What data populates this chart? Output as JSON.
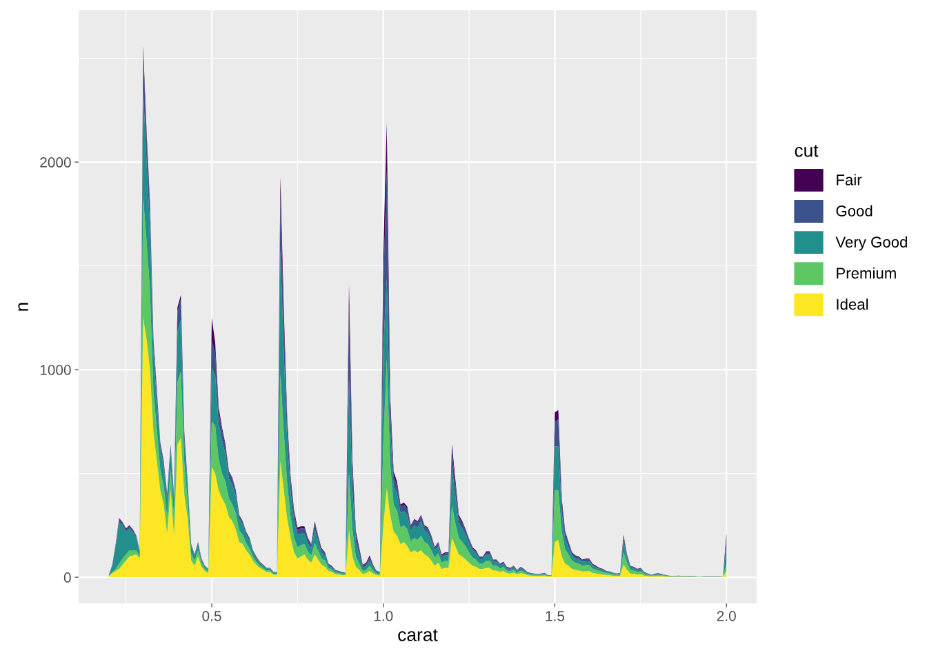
{
  "chart_data": {
    "type": "area",
    "stacked": true,
    "xlabel": "carat",
    "ylabel": "n",
    "legend_title": "cut",
    "legend": "right",
    "grid": true,
    "xlim": [
      0.112,
      2.088
    ],
    "ylim": [
      -126,
      2731
    ],
    "xticks": [
      {
        "value": 0.25,
        "label": null
      },
      {
        "value": 0.5,
        "label": "0.5"
      },
      {
        "value": 0.75,
        "label": null
      },
      {
        "value": 1.0,
        "label": "1.0"
      },
      {
        "value": 1.25,
        "label": null
      },
      {
        "value": 1.5,
        "label": "1.5"
      },
      {
        "value": 1.75,
        "label": null
      },
      {
        "value": 2.0,
        "label": "2.0"
      }
    ],
    "yticks": [
      0,
      {
        "value": 500,
        "label": null
      },
      1000,
      {
        "value": 1500,
        "label": null
      },
      2000,
      {
        "value": 2500,
        "label": null
      }
    ],
    "x": [
      0.2,
      0.21,
      0.22,
      0.23,
      0.24,
      0.25,
      0.26,
      0.27,
      0.28,
      0.29,
      0.3,
      0.31,
      0.32,
      0.33,
      0.34,
      0.35,
      0.36,
      0.37,
      0.38,
      0.39,
      0.4,
      0.41,
      0.42,
      0.43,
      0.44,
      0.45,
      0.46,
      0.47,
      0.48,
      0.49,
      0.5,
      0.51,
      0.52,
      0.53,
      0.54,
      0.55,
      0.56,
      0.57,
      0.58,
      0.59,
      0.6,
      0.61,
      0.62,
      0.63,
      0.64,
      0.65,
      0.66,
      0.67,
      0.68,
      0.69,
      0.7,
      0.71,
      0.72,
      0.73,
      0.74,
      0.75,
      0.76,
      0.77,
      0.78,
      0.79,
      0.8,
      0.81,
      0.82,
      0.83,
      0.84,
      0.85,
      0.86,
      0.87,
      0.88,
      0.89,
      0.9,
      0.91,
      0.92,
      0.93,
      0.94,
      0.95,
      0.96,
      0.97,
      0.98,
      0.99,
      1.0,
      1.01,
      1.02,
      1.03,
      1.04,
      1.05,
      1.06,
      1.07,
      1.08,
      1.09,
      1.1,
      1.11,
      1.12,
      1.13,
      1.14,
      1.15,
      1.16,
      1.17,
      1.18,
      1.19,
      1.2,
      1.21,
      1.22,
      1.23,
      1.24,
      1.25,
      1.26,
      1.27,
      1.28,
      1.29,
      1.3,
      1.31,
      1.32,
      1.33,
      1.34,
      1.35,
      1.36,
      1.37,
      1.38,
      1.39,
      1.4,
      1.41,
      1.42,
      1.43,
      1.44,
      1.45,
      1.46,
      1.47,
      1.48,
      1.49,
      1.5,
      1.51,
      1.52,
      1.53,
      1.54,
      1.55,
      1.56,
      1.57,
      1.58,
      1.59,
      1.6,
      1.61,
      1.62,
      1.63,
      1.64,
      1.65,
      1.66,
      1.67,
      1.68,
      1.69,
      1.7,
      1.71,
      1.72,
      1.73,
      1.74,
      1.75,
      1.76,
      1.78,
      1.8,
      1.82,
      1.84,
      1.86,
      1.88,
      1.9,
      1.92,
      1.94,
      1.96,
      1.98,
      1.99,
      2.0
    ],
    "series": [
      {
        "name": "Ideal",
        "color": "#fde725",
        "values": [
          5,
          20,
          30,
          40,
          60,
          80,
          100,
          105,
          110,
          90,
          1250,
          1150,
          1000,
          700,
          560,
          420,
          350,
          210,
          420,
          200,
          640,
          670,
          400,
          280,
          80,
          55,
          100,
          50,
          30,
          20,
          530,
          500,
          420,
          380,
          350,
          290,
          270,
          230,
          170,
          160,
          130,
          110,
          80,
          60,
          45,
          35,
          25,
          25,
          12,
          12,
          560,
          420,
          280,
          190,
          120,
          90,
          100,
          110,
          85,
          70,
          110,
          85,
          60,
          50,
          30,
          25,
          15,
          13,
          10,
          9,
          225,
          100,
          50,
          35,
          15,
          20,
          30,
          18,
          10,
          8,
          250,
          430,
          300,
          220,
          200,
          160,
          170,
          150,
          120,
          130,
          120,
          130,
          110,
          100,
          80,
          55,
          70,
          40,
          45,
          45,
          190,
          150,
          110,
          100,
          85,
          70,
          55,
          50,
          40,
          40,
          45,
          45,
          33,
          33,
          26,
          30,
          20,
          18,
          22,
          14,
          20,
          16,
          10,
          8,
          7,
          6,
          7,
          8,
          4,
          4,
          170,
          180,
          100,
          65,
          55,
          40,
          35,
          33,
          28,
          29,
          29,
          21,
          18,
          15,
          13,
          10,
          9,
          7,
          6,
          6,
          60,
          35,
          18,
          16,
          13,
          14,
          8,
          4,
          6,
          4,
          2,
          3,
          2,
          2,
          1,
          1,
          1,
          1,
          1,
          30
        ]
      },
      {
        "name": "Premium",
        "color": "#5dc863",
        "values": [
          2,
          5,
          10,
          25,
          30,
          30,
          30,
          25,
          20,
          10,
          580,
          470,
          380,
          200,
          150,
          100,
          90,
          80,
          100,
          90,
          300,
          320,
          150,
          80,
          35,
          25,
          30,
          20,
          12,
          10,
          220,
          230,
          150,
          120,
          110,
          90,
          80,
          80,
          55,
          45,
          35,
          30,
          20,
          15,
          12,
          10,
          8,
          8,
          5,
          5,
          420,
          280,
          170,
          100,
          70,
          55,
          55,
          50,
          40,
          35,
          55,
          45,
          30,
          30,
          15,
          12,
          8,
          7,
          6,
          5,
          280,
          130,
          50,
          30,
          15,
          15,
          25,
          15,
          8,
          6,
          400,
          620,
          250,
          130,
          120,
          80,
          80,
          80,
          55,
          60,
          60,
          70,
          60,
          60,
          50,
          40,
          45,
          30,
          35,
          35,
          155,
          110,
          80,
          70,
          65,
          50,
          40,
          35,
          25,
          25,
          35,
          35,
          22,
          22,
          17,
          19,
          12,
          11,
          14,
          9,
          12,
          10,
          6,
          5,
          5,
          4,
          5,
          5,
          3,
          3,
          250,
          240,
          120,
          70,
          55,
          40,
          35,
          33,
          28,
          29,
          29,
          21,
          18,
          15,
          13,
          10,
          9,
          7,
          6,
          6,
          60,
          35,
          18,
          16,
          13,
          14,
          8,
          4,
          6,
          4,
          1,
          2,
          1,
          2,
          1,
          1,
          1,
          1,
          1,
          35
        ]
      },
      {
        "name": "Very Good",
        "color": "#21908c",
        "values": [
          2,
          30,
          110,
          200,
          160,
          110,
          105,
          85,
          60,
          25,
          520,
          380,
          300,
          180,
          140,
          100,
          95,
          85,
          90,
          75,
          240,
          250,
          110,
          70,
          35,
          25,
          30,
          15,
          10,
          7,
          260,
          240,
          170,
          160,
          130,
          95,
          95,
          80,
          55,
          50,
          40,
          35,
          22,
          18,
          13,
          11,
          9,
          9,
          6,
          6,
          600,
          380,
          200,
          120,
          80,
          60,
          55,
          50,
          40,
          35,
          65,
          45,
          30,
          25,
          12,
          10,
          7,
          6,
          5,
          5,
          450,
          190,
          70,
          45,
          15,
          20,
          25,
          15,
          7,
          6,
          450,
          390,
          170,
          90,
          85,
          70,
          70,
          70,
          50,
          60,
          60,
          70,
          55,
          55,
          45,
          35,
          35,
          25,
          25,
          25,
          185,
          130,
          70,
          65,
          55,
          45,
          35,
          30,
          25,
          25,
          30,
          30,
          19,
          19,
          14,
          16,
          11,
          10,
          12,
          8,
          11,
          9,
          6,
          4,
          4,
          3,
          4,
          5,
          2,
          2,
          210,
          210,
          90,
          50,
          35,
          25,
          22,
          21,
          18,
          19,
          19,
          13,
          11,
          9,
          8,
          6,
          6,
          5,
          4,
          5,
          55,
          25,
          12,
          11,
          8,
          10,
          5,
          2,
          4,
          2,
          1,
          2,
          1,
          2,
          1,
          1,
          1,
          1,
          1,
          80
        ]
      },
      {
        "name": "Good",
        "color": "#3b528b",
        "values": [
          1,
          3,
          8,
          15,
          12,
          10,
          10,
          10,
          8,
          4,
          170,
          120,
          100,
          55,
          40,
          25,
          20,
          20,
          25,
          20,
          100,
          100,
          35,
          15,
          8,
          5,
          8,
          4,
          3,
          3,
          130,
          110,
          60,
          45,
          40,
          30,
          30,
          25,
          15,
          12,
          12,
          12,
          6,
          5,
          4,
          3,
          2,
          2,
          1,
          1,
          250,
          150,
          80,
          50,
          35,
          25,
          25,
          25,
          20,
          15,
          30,
          20,
          15,
          10,
          6,
          6,
          3,
          3,
          3,
          2,
          350,
          100,
          35,
          20,
          10,
          10,
          15,
          8,
          4,
          3,
          300,
          520,
          100,
          45,
          40,
          30,
          30,
          30,
          20,
          25,
          25,
          25,
          20,
          20,
          20,
          10,
          15,
          10,
          10,
          10,
          80,
          55,
          30,
          25,
          20,
          15,
          10,
          10,
          8,
          8,
          10,
          10,
          8,
          8,
          6,
          7,
          5,
          4,
          5,
          3,
          5,
          4,
          2,
          2,
          1,
          1,
          1,
          2,
          1,
          1,
          120,
          130,
          50,
          25,
          20,
          10,
          9,
          9,
          8,
          9,
          9,
          7,
          5,
          4,
          4,
          3,
          3,
          2,
          1,
          2,
          20,
          10,
          5,
          5,
          4,
          5,
          3,
          1,
          3,
          1,
          1,
          1,
          1,
          1,
          0,
          1,
          1,
          1,
          0,
          40
        ]
      },
      {
        "name": "Fair",
        "color": "#440154",
        "values": [
          0,
          2,
          2,
          5,
          3,
          5,
          5,
          5,
          2,
          1,
          40,
          30,
          20,
          15,
          10,
          5,
          5,
          5,
          5,
          5,
          20,
          20,
          5,
          5,
          2,
          0,
          2,
          1,
          0,
          0,
          110,
          50,
          20,
          15,
          10,
          5,
          5,
          5,
          5,
          3,
          3,
          3,
          2,
          2,
          1,
          1,
          1,
          1,
          1,
          1,
          100,
          60,
          30,
          20,
          15,
          10,
          10,
          10,
          5,
          5,
          10,
          5,
          5,
          5,
          2,
          2,
          2,
          1,
          1,
          1,
          105,
          40,
          15,
          10,
          5,
          5,
          10,
          4,
          2,
          2,
          150,
          230,
          50,
          25,
          15,
          10,
          10,
          10,
          5,
          5,
          5,
          5,
          5,
          5,
          5,
          5,
          5,
          5,
          5,
          5,
          30,
          25,
          10,
          10,
          5,
          5,
          5,
          5,
          2,
          2,
          5,
          5,
          3,
          3,
          2,
          3,
          2,
          2,
          2,
          1,
          2,
          1,
          1,
          1,
          1,
          1,
          1,
          1,
          0,
          0,
          45,
          45,
          20,
          10,
          5,
          5,
          4,
          4,
          3,
          4,
          4,
          3,
          3,
          2,
          2,
          1,
          1,
          1,
          1,
          1,
          10,
          5,
          2,
          2,
          2,
          2,
          1,
          1,
          1,
          1,
          0,
          0,
          0,
          0,
          0,
          0,
          0,
          0,
          0,
          28
        ]
      }
    ]
  }
}
